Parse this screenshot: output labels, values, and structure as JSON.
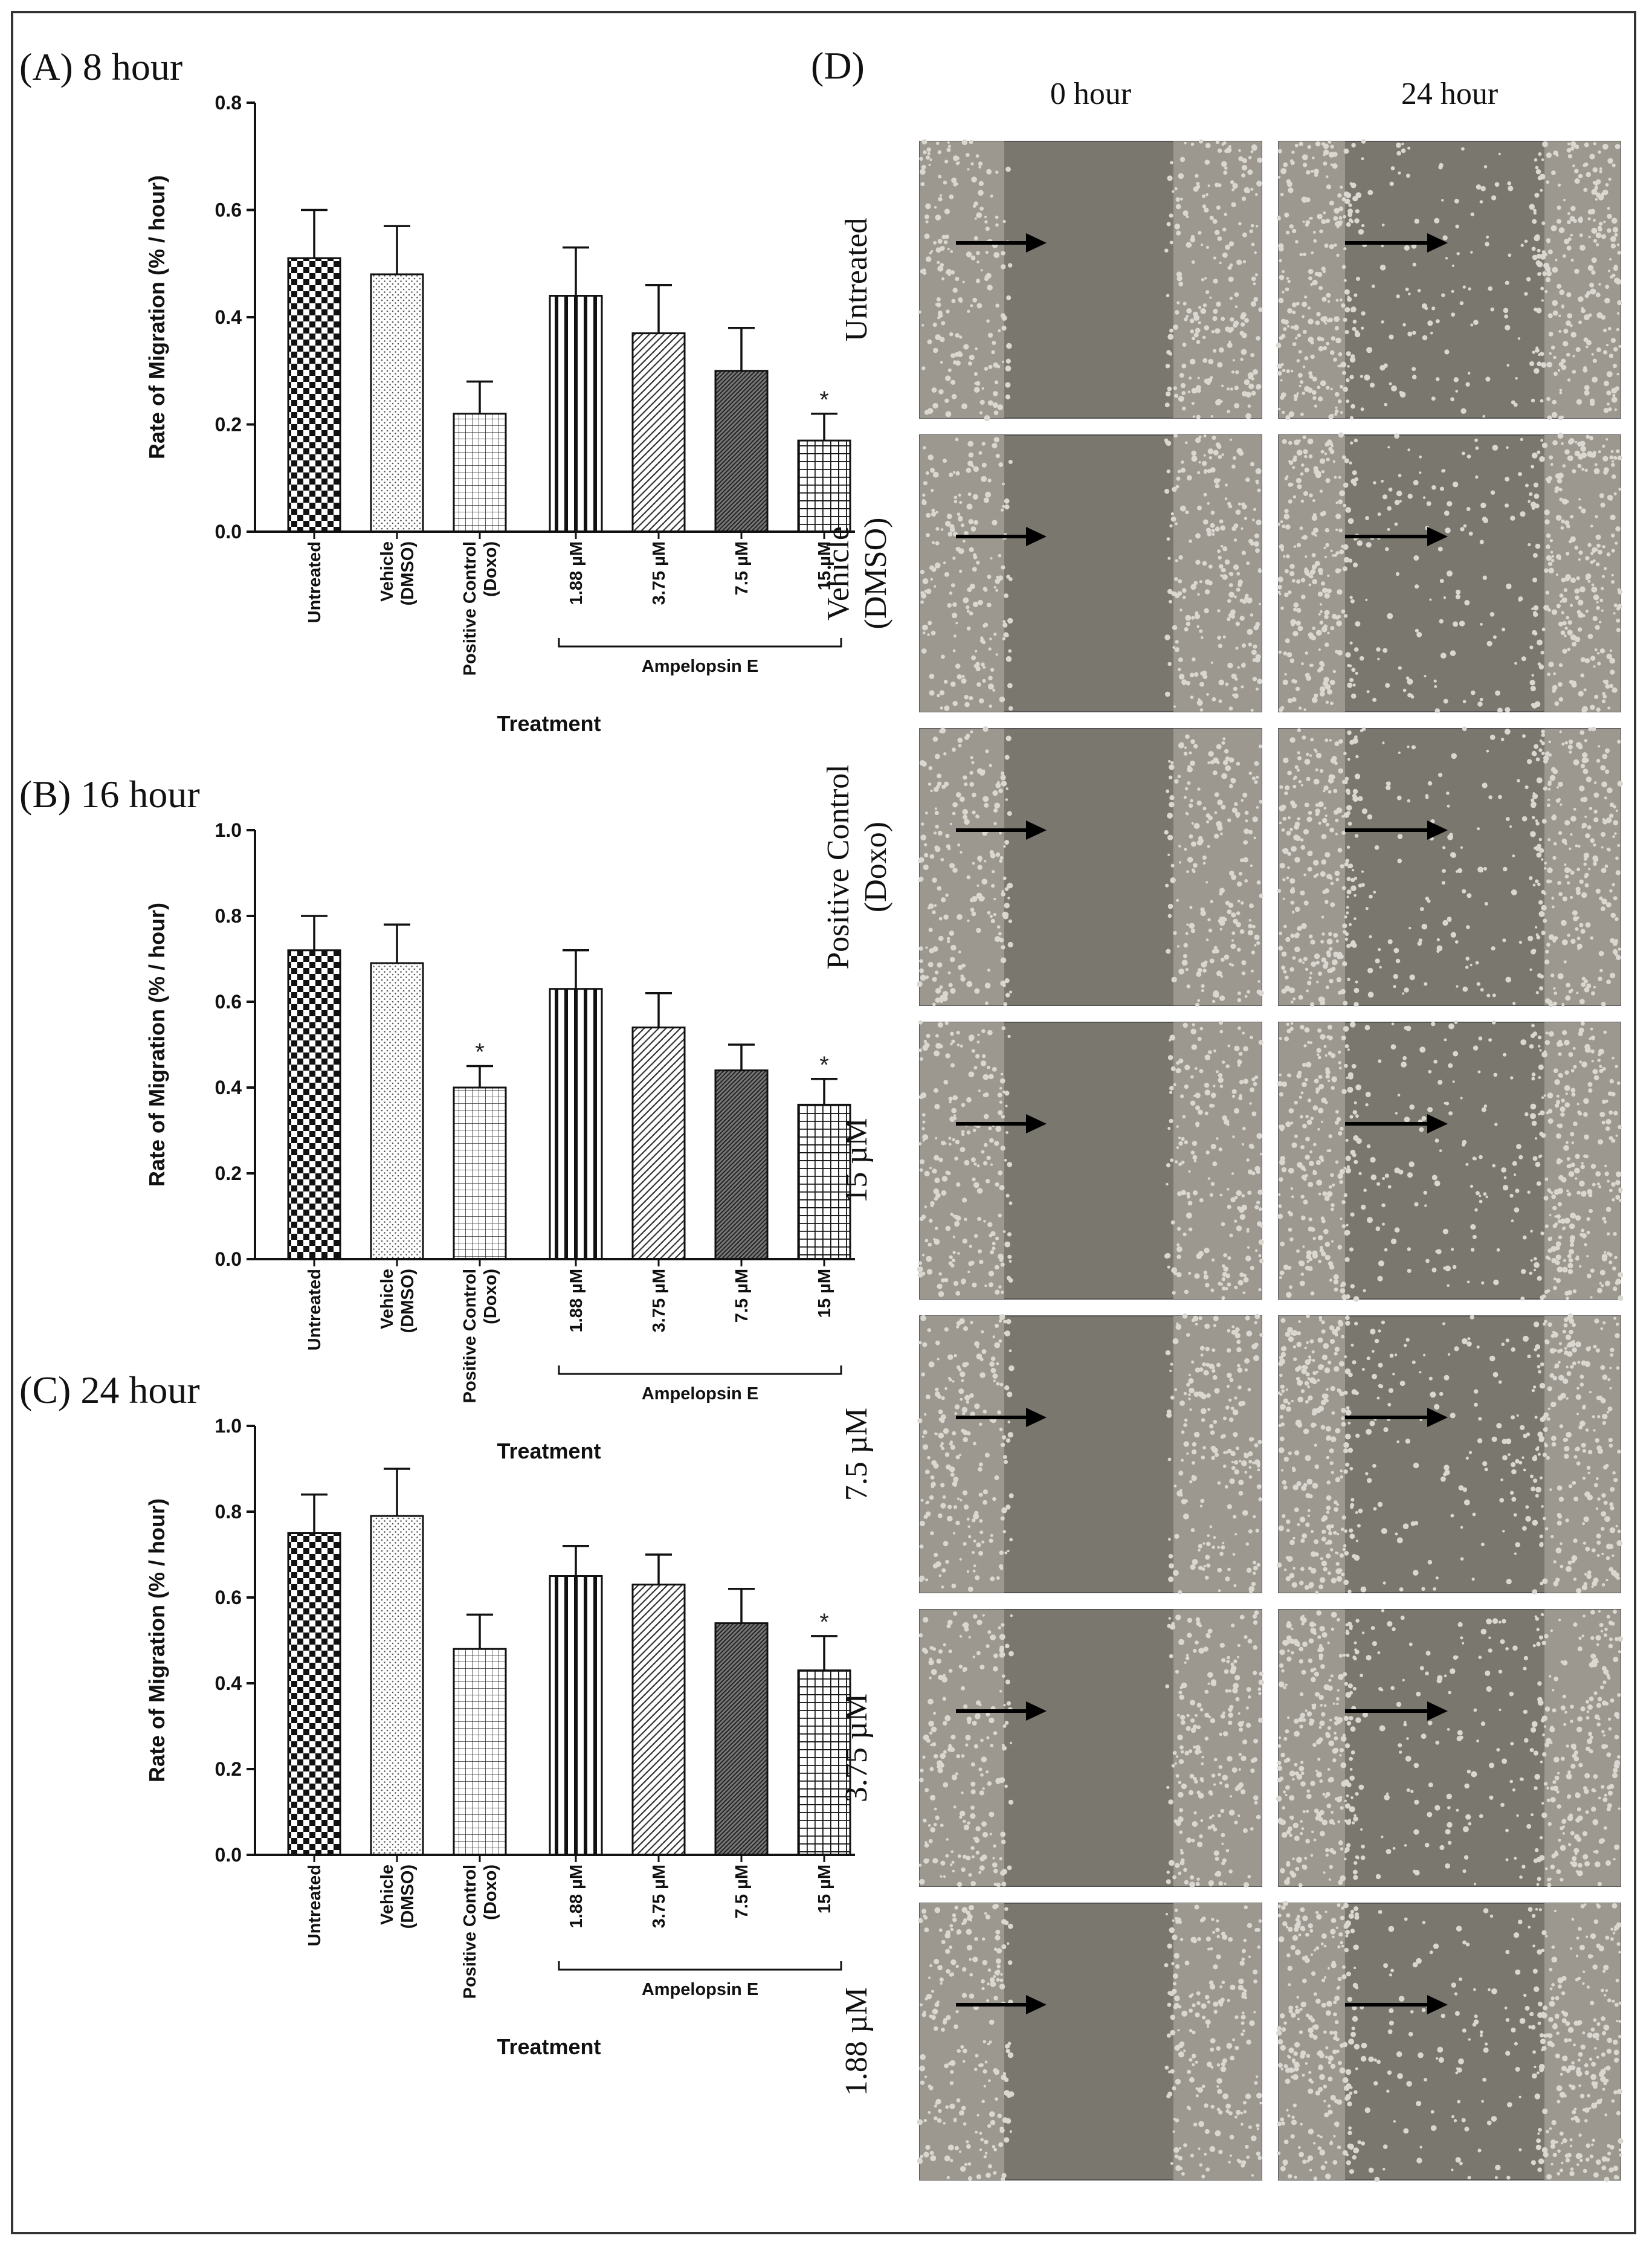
{
  "colors": {
    "bar_stroke": "#111111",
    "frame": "#333333",
    "cell_dark": "#7a776e",
    "cell_light": "#d9d7d0",
    "arrow": "#000000"
  },
  "chart_data": [
    {
      "type": "bar",
      "panel_label": "(A) 8 hour",
      "xlabel": "Treatment",
      "ylabel": "Rate of Migration (% / hour)",
      "ylim": [
        0,
        0.8
      ],
      "yticks": [
        "0.0",
        "0.2",
        "0.4",
        "0.6",
        "0.8"
      ],
      "categories": [
        "Untreated",
        "Vehicle (DMSO)",
        "Positive Control (Doxo)",
        "1.88 µM",
        "3.75 µM",
        "7.5 µM",
        "15 µM"
      ],
      "category_lines": [
        [
          "Untreated"
        ],
        [
          "Vehicle",
          "(DMSO)"
        ],
        [
          "Positive Control",
          "(Doxo)"
        ],
        [
          "1.88 µM"
        ],
        [
          "3.75 µM"
        ],
        [
          "7.5 µM"
        ],
        [
          "15 µM"
        ]
      ],
      "group_label": "Ampelopsin E",
      "values": [
        0.51,
        0.48,
        0.22,
        0.44,
        0.37,
        0.3,
        0.17
      ],
      "errors": [
        0.09,
        0.09,
        0.06,
        0.09,
        0.09,
        0.08,
        0.05
      ],
      "significance": [
        "",
        "",
        "",
        "",
        "",
        "",
        "*"
      ],
      "patterns": [
        "checker",
        "dots",
        "grid",
        "vstripes",
        "diag",
        "densediag",
        "boldgrid"
      ]
    },
    {
      "type": "bar",
      "panel_label": "(B) 16 hour",
      "xlabel": "Treatment",
      "ylabel": "Rate of Migration (% / hour)",
      "ylim": [
        0,
        1.0
      ],
      "yticks": [
        "0.0",
        "0.2",
        "0.4",
        "0.6",
        "0.8",
        "1.0"
      ],
      "categories": [
        "Untreated",
        "Vehicle (DMSO)",
        "Positive Control (Doxo)",
        "1.88 µM",
        "3.75 µM",
        "7.5 µM",
        "15 µM"
      ],
      "category_lines": [
        [
          "Untreated"
        ],
        [
          "Vehicle",
          "(DMSO)"
        ],
        [
          "Positive Control",
          "(Doxo)"
        ],
        [
          "1.88 µM"
        ],
        [
          "3.75 µM"
        ],
        [
          "7.5 µM"
        ],
        [
          "15 µM"
        ]
      ],
      "group_label": "Ampelopsin E",
      "values": [
        0.72,
        0.69,
        0.4,
        0.63,
        0.54,
        0.44,
        0.36
      ],
      "errors": [
        0.08,
        0.09,
        0.05,
        0.09,
        0.08,
        0.06,
        0.06
      ],
      "significance": [
        "",
        "",
        "*",
        "",
        "",
        "",
        "*"
      ],
      "patterns": [
        "checker",
        "dots",
        "grid",
        "vstripes",
        "diag",
        "densediag",
        "boldgrid"
      ]
    },
    {
      "type": "bar",
      "panel_label": "(C) 24 hour",
      "xlabel": "Treatment",
      "ylabel": "Rate of Migration (% / hour)",
      "ylim": [
        0,
        1.0
      ],
      "yticks": [
        "0.0",
        "0.2",
        "0.4",
        "0.6",
        "0.8",
        "1.0"
      ],
      "categories": [
        "Untreated",
        "Vehicle (DMSO)",
        "Positive Control (Doxo)",
        "1.88 µM",
        "3.75 µM",
        "7.5 µM",
        "15 µM"
      ],
      "category_lines": [
        [
          "Untreated"
        ],
        [
          "Vehicle",
          "(DMSO)"
        ],
        [
          "Positive Control",
          "(Doxo)"
        ],
        [
          "1.88 µM"
        ],
        [
          "3.75 µM"
        ],
        [
          "7.5 µM"
        ],
        [
          "15 µM"
        ]
      ],
      "group_label": "Ampelopsin E",
      "values": [
        0.75,
        0.79,
        0.48,
        0.65,
        0.63,
        0.54,
        0.43
      ],
      "errors": [
        0.09,
        0.11,
        0.08,
        0.07,
        0.07,
        0.08,
        0.08
      ],
      "significance": [
        "",
        "",
        "",
        "",
        "",
        "",
        "*"
      ],
      "patterns": [
        "checker",
        "dots",
        "grid",
        "vstripes",
        "diag",
        "densediag",
        "boldgrid"
      ]
    }
  ],
  "micrographs": {
    "panel_label": "(D)",
    "columns": [
      "0 hour",
      "24 hour"
    ],
    "rows": [
      [
        "Untreated"
      ],
      [
        "Vehicle",
        "(DMSO)"
      ],
      [
        "Positive Control",
        "(Doxo)"
      ],
      [
        "15 µM"
      ],
      [
        "7.5 µM"
      ],
      [
        "3.75 µM"
      ],
      [
        "1.88 µM"
      ]
    ]
  }
}
